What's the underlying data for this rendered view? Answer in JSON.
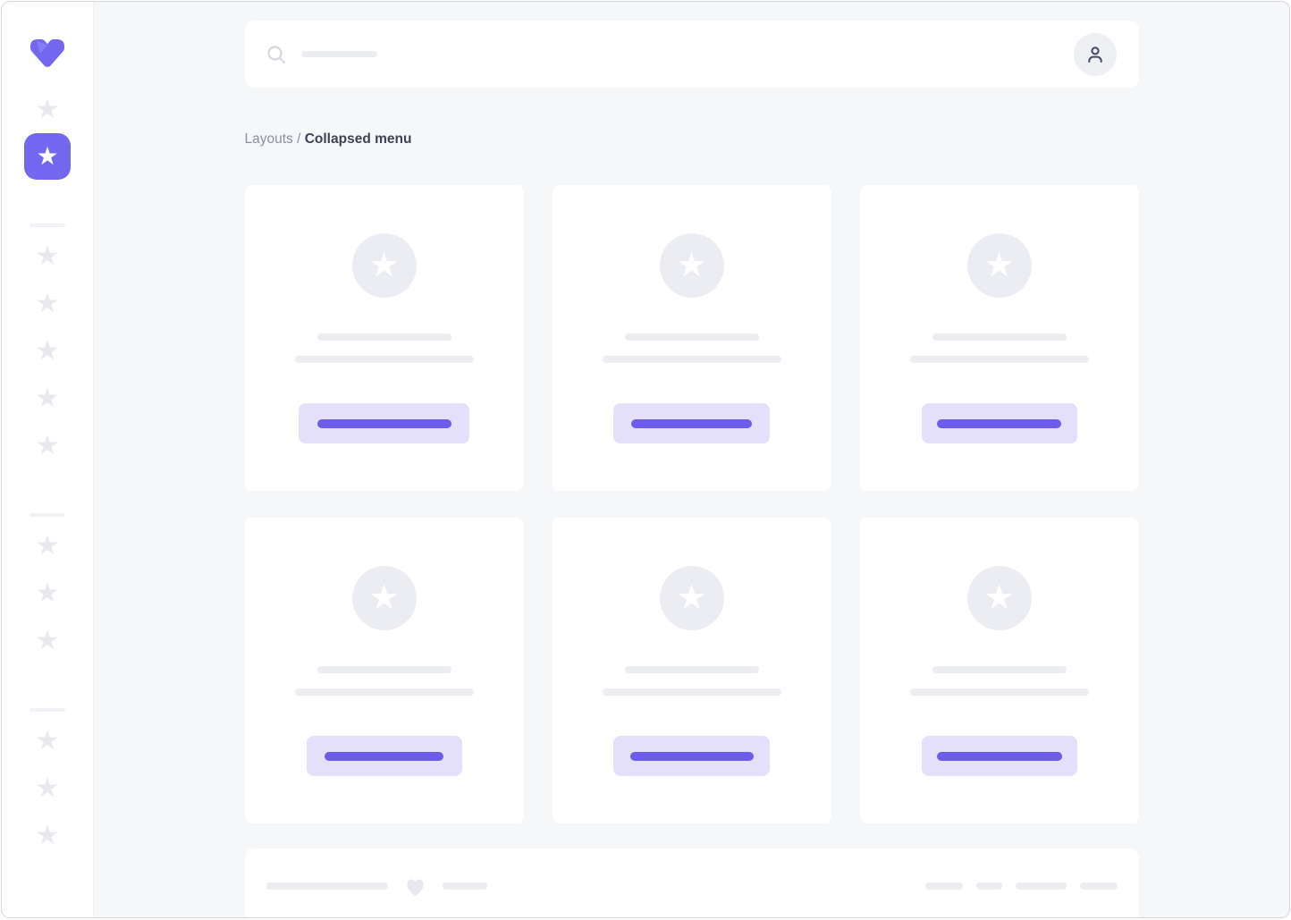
{
  "breadcrumb": {
    "parent": "Layouts",
    "separator": " / ",
    "current": "Collapsed menu"
  },
  "icons": {
    "star": "★",
    "logo": "v-logo",
    "search": "search-icon",
    "user": "user-icon",
    "heart": "heart-icon"
  },
  "sidebar": {
    "items": [
      {
        "type": "star",
        "active": false
      },
      {
        "type": "star",
        "active": true
      },
      {
        "type": "divider"
      },
      {
        "type": "star",
        "active": false
      },
      {
        "type": "star",
        "active": false
      },
      {
        "type": "star",
        "active": false
      },
      {
        "type": "star",
        "active": false
      },
      {
        "type": "star",
        "active": false
      },
      {
        "type": "divider"
      },
      {
        "type": "star",
        "active": false
      },
      {
        "type": "star",
        "active": false
      },
      {
        "type": "star",
        "active": false
      },
      {
        "type": "divider"
      },
      {
        "type": "star",
        "active": false
      },
      {
        "type": "star",
        "active": false
      },
      {
        "type": "star",
        "active": false
      }
    ]
  },
  "topbar": {
    "search_placeholder_w": 85
  },
  "cards": [
    {
      "title_w": 150,
      "subtitle_w": 200,
      "button_w": 191,
      "button_line_w": 150
    },
    {
      "title_w": 150,
      "subtitle_w": 200,
      "button_w": 175,
      "button_line_w": 135
    },
    {
      "title_w": 150,
      "subtitle_w": 200,
      "button_w": 174,
      "button_line_w": 139
    },
    {
      "title_w": 150,
      "subtitle_w": 200,
      "button_w": 174,
      "button_line_w": 133
    },
    {
      "title_w": 150,
      "subtitle_w": 200,
      "button_w": 175,
      "button_line_w": 138
    },
    {
      "title_w": 150,
      "subtitle_w": 200,
      "button_w": 174,
      "button_line_w": 140
    }
  ],
  "footer": {
    "left": [
      {
        "type": "pill",
        "w": 136
      },
      {
        "type": "heart"
      },
      {
        "type": "pill",
        "w": 50
      }
    ],
    "right_pills": [
      42,
      29,
      57,
      42
    ]
  },
  "colors": {
    "accent": "#7367F0",
    "accent_line": "#6D5BE9",
    "accent_light": "#E4E0FB",
    "placeholder": "#ECEDF1",
    "star_muted": "#E8E9EE",
    "bg": "#F6F7F9",
    "text_dark": "#3F4254",
    "text_muted": "#8C90A0"
  }
}
